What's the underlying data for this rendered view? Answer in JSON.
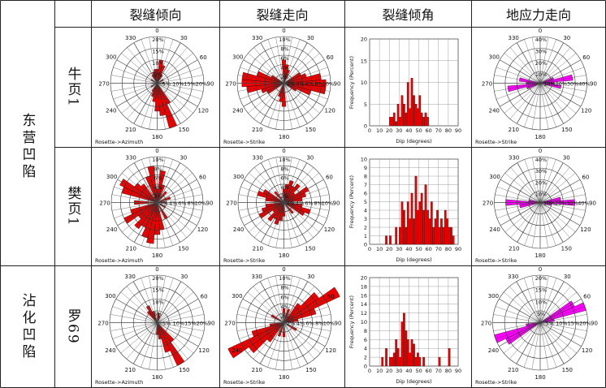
{
  "headers": [
    "裂缝倾向",
    "裂缝走向",
    "裂缝倾角",
    "地应力走向"
  ],
  "regions": [
    {
      "name": "东营凹陷",
      "wells": [
        "牛页1",
        "樊页1"
      ]
    },
    {
      "name": "沾化凹陷",
      "wells": [
        "罗69"
      ]
    }
  ],
  "rose_labels": {
    "azimuth": "Rosette->Azimuth",
    "strike": "Rosette->Strike",
    "angles": [
      "0",
      "30",
      "60",
      "90",
      "120",
      "150",
      "180",
      "210",
      "240",
      "270",
      "300",
      "330"
    ]
  },
  "hist_labels": {
    "ylabel": "Frequency (Percent)",
    "xlabel": "Dip (degrees)"
  },
  "colors": {
    "red": "#ee0000",
    "magenta": "#ff00ff",
    "line": "#222222"
  },
  "chart_data": [
    {
      "type": "rose",
      "row": 0,
      "col": 0,
      "label": "Rosette->Azimuth",
      "rings": [
        "5%",
        "10%",
        "15%",
        "20%"
      ],
      "max": 20,
      "color": "#ee0000",
      "bins": [
        [
          0,
          6
        ],
        [
          10,
          10
        ],
        [
          20,
          8
        ],
        [
          30,
          4
        ],
        [
          60,
          3
        ],
        [
          90,
          3
        ],
        [
          150,
          10
        ],
        [
          160,
          20
        ],
        [
          170,
          14
        ],
        [
          180,
          12
        ],
        [
          190,
          8
        ],
        [
          200,
          6
        ],
        [
          210,
          4
        ],
        [
          240,
          3
        ],
        [
          270,
          2
        ],
        [
          300,
          3
        ],
        [
          330,
          4
        ],
        [
          340,
          5
        ],
        [
          350,
          6
        ]
      ]
    },
    {
      "type": "rose",
      "row": 0,
      "col": 1,
      "label": "Rosette->Strike",
      "rings": [
        "2%",
        "4%",
        "6%",
        "8%",
        "10%"
      ],
      "max": 10,
      "color": "#ee0000",
      "bins": [
        [
          0,
          5
        ],
        [
          10,
          4
        ],
        [
          20,
          3
        ],
        [
          60,
          4
        ],
        [
          70,
          5
        ],
        [
          80,
          8
        ],
        [
          90,
          9
        ],
        [
          100,
          9
        ],
        [
          110,
          6
        ],
        [
          120,
          3
        ],
        [
          180,
          5
        ],
        [
          190,
          4
        ],
        [
          200,
          3
        ],
        [
          240,
          4
        ],
        [
          250,
          5
        ],
        [
          260,
          8
        ],
        [
          270,
          9
        ],
        [
          280,
          9
        ],
        [
          290,
          6
        ],
        [
          300,
          3
        ]
      ]
    },
    {
      "type": "histogram",
      "row": 0,
      "col": 2,
      "x_ticks": [
        0,
        10,
        20,
        30,
        40,
        50,
        60,
        70,
        80,
        90
      ],
      "y_ticks": [
        0,
        5,
        10,
        15,
        20
      ],
      "ymax": 20,
      "color": "#ee0000",
      "bins": [
        [
          20,
          2
        ],
        [
          22,
          2
        ],
        [
          24,
          3
        ],
        [
          26,
          1
        ],
        [
          28,
          5
        ],
        [
          30,
          2
        ],
        [
          32,
          7
        ],
        [
          34,
          5
        ],
        [
          36,
          3
        ],
        [
          38,
          10
        ],
        [
          40,
          4
        ],
        [
          42,
          11
        ],
        [
          44,
          7
        ],
        [
          46,
          5
        ],
        [
          48,
          4
        ],
        [
          50,
          7
        ],
        [
          52,
          3
        ],
        [
          54,
          2
        ],
        [
          56,
          3
        ],
        [
          58,
          2
        ]
      ]
    },
    {
      "type": "rose",
      "row": 0,
      "col": 3,
      "label": "Rosette->Strike",
      "rings": [
        "10%",
        "20%",
        "30%",
        "40%"
      ],
      "max": 40,
      "color": "#ff00ff",
      "bins": [
        [
          70,
          12
        ],
        [
          80,
          28
        ],
        [
          90,
          12
        ],
        [
          100,
          18
        ],
        [
          250,
          12
        ],
        [
          260,
          28
        ],
        [
          270,
          12
        ],
        [
          280,
          18
        ]
      ]
    },
    {
      "type": "rose",
      "row": 1,
      "col": 0,
      "label": "Rosette->Azimuth",
      "rings": [
        "2%",
        "4%",
        "6%",
        "8%",
        "10%"
      ],
      "max": 10,
      "color": "#ee0000",
      "bins": [
        [
          0,
          3
        ],
        [
          10,
          7
        ],
        [
          20,
          4
        ],
        [
          40,
          3
        ],
        [
          70,
          3
        ],
        [
          90,
          2
        ],
        [
          120,
          2
        ],
        [
          150,
          4
        ],
        [
          170,
          6
        ],
        [
          180,
          7
        ],
        [
          190,
          9
        ],
        [
          200,
          8
        ],
        [
          210,
          6
        ],
        [
          220,
          7
        ],
        [
          230,
          5
        ],
        [
          240,
          8
        ],
        [
          250,
          6
        ],
        [
          270,
          5
        ],
        [
          290,
          8
        ],
        [
          300,
          9
        ],
        [
          310,
          6
        ],
        [
          320,
          5
        ],
        [
          340,
          6
        ],
        [
          350,
          8
        ]
      ]
    },
    {
      "type": "rose",
      "row": 1,
      "col": 1,
      "label": "Rosette->Strike",
      "rings": [
        "2%",
        "4%",
        "6%",
        "8%",
        "10%"
      ],
      "max": 10,
      "color": "#ee0000",
      "bins": [
        [
          0,
          3
        ],
        [
          10,
          4
        ],
        [
          20,
          5
        ],
        [
          30,
          4
        ],
        [
          40,
          5
        ],
        [
          50,
          3
        ],
        [
          60,
          6
        ],
        [
          70,
          5
        ],
        [
          80,
          4
        ],
        [
          100,
          4
        ],
        [
          110,
          6
        ],
        [
          120,
          5
        ],
        [
          140,
          3
        ],
        [
          180,
          3
        ],
        [
          190,
          4
        ],
        [
          200,
          5
        ],
        [
          210,
          4
        ],
        [
          220,
          5
        ],
        [
          230,
          3
        ],
        [
          240,
          6
        ],
        [
          250,
          5
        ],
        [
          260,
          4
        ],
        [
          280,
          4
        ],
        [
          290,
          6
        ],
        [
          300,
          5
        ],
        [
          320,
          3
        ]
      ]
    },
    {
      "type": "histogram",
      "row": 1,
      "col": 2,
      "x_ticks": [
        0,
        10,
        20,
        30,
        40,
        50,
        60,
        70,
        80,
        90
      ],
      "y_ticks": [
        0,
        1,
        2,
        3,
        4,
        5,
        6,
        7,
        8,
        9,
        10
      ],
      "ymax": 10,
      "color": "#ee0000",
      "bins": [
        [
          16,
          1
        ],
        [
          20,
          1
        ],
        [
          26,
          2
        ],
        [
          30,
          2
        ],
        [
          32,
          5
        ],
        [
          34,
          4
        ],
        [
          36,
          2
        ],
        [
          38,
          5
        ],
        [
          40,
          3
        ],
        [
          42,
          6
        ],
        [
          44,
          3
        ],
        [
          46,
          8
        ],
        [
          48,
          4
        ],
        [
          50,
          5
        ],
        [
          52,
          6
        ],
        [
          54,
          4
        ],
        [
          56,
          7
        ],
        [
          58,
          4
        ],
        [
          60,
          3
        ],
        [
          62,
          5
        ],
        [
          64,
          2
        ],
        [
          66,
          3
        ],
        [
          68,
          4
        ],
        [
          70,
          2
        ],
        [
          72,
          3
        ],
        [
          74,
          2
        ],
        [
          76,
          4
        ],
        [
          78,
          3
        ],
        [
          80,
          2
        ],
        [
          82,
          2
        ],
        [
          84,
          1
        ]
      ]
    },
    {
      "type": "rose",
      "row": 1,
      "col": 3,
      "label": "Rosette->Strike",
      "rings": [
        "10%",
        "20%",
        "30%",
        "40%"
      ],
      "max": 40,
      "color": "#ff00ff",
      "bins": [
        [
          80,
          18
        ],
        [
          90,
          30
        ],
        [
          100,
          10
        ],
        [
          260,
          18
        ],
        [
          270,
          30
        ],
        [
          280,
          10
        ]
      ]
    },
    {
      "type": "rose",
      "row": 2,
      "col": 0,
      "label": "Rosette->Azimuth",
      "rings": [
        "5%",
        "10%",
        "15%",
        "20%"
      ],
      "max": 20,
      "color": "#ee0000",
      "bins": [
        [
          10,
          4
        ],
        [
          20,
          3
        ],
        [
          90,
          2
        ],
        [
          140,
          10
        ],
        [
          150,
          20
        ],
        [
          160,
          13
        ],
        [
          170,
          7
        ],
        [
          180,
          5
        ],
        [
          320,
          6
        ],
        [
          330,
          8
        ],
        [
          340,
          5
        ]
      ]
    },
    {
      "type": "rose",
      "row": 2,
      "col": 1,
      "label": "Rosette->Strike",
      "rings": [
        "2%",
        "4%",
        "6%",
        "8%",
        "10%"
      ],
      "max": 10,
      "color": "#ee0000",
      "bins": [
        [
          0,
          3
        ],
        [
          20,
          3
        ],
        [
          40,
          5
        ],
        [
          50,
          9
        ],
        [
          60,
          13
        ],
        [
          70,
          7
        ],
        [
          80,
          3
        ],
        [
          120,
          3
        ],
        [
          180,
          3
        ],
        [
          200,
          3
        ],
        [
          220,
          5
        ],
        [
          230,
          9
        ],
        [
          240,
          13
        ],
        [
          250,
          7
        ],
        [
          260,
          3
        ],
        [
          300,
          3
        ]
      ]
    },
    {
      "type": "histogram",
      "row": 2,
      "col": 2,
      "x_ticks": [
        0,
        10,
        20,
        30,
        40,
        50,
        60,
        70,
        80,
        90
      ],
      "y_ticks": [
        0,
        2,
        4,
        6,
        8,
        10,
        12,
        14,
        16,
        18,
        20
      ],
      "ymax": 20,
      "color": "#ee0000",
      "bins": [
        [
          12,
          2
        ],
        [
          16,
          4
        ],
        [
          20,
          2
        ],
        [
          22,
          2
        ],
        [
          24,
          3
        ],
        [
          26,
          6
        ],
        [
          28,
          4
        ],
        [
          30,
          2
        ],
        [
          32,
          10
        ],
        [
          34,
          12
        ],
        [
          36,
          8
        ],
        [
          38,
          6
        ],
        [
          40,
          3
        ],
        [
          42,
          6
        ],
        [
          44,
          5
        ],
        [
          46,
          2
        ],
        [
          48,
          3
        ],
        [
          50,
          2
        ],
        [
          54,
          2
        ],
        [
          70,
          2
        ],
        [
          80,
          4
        ]
      ]
    },
    {
      "type": "rose",
      "row": 2,
      "col": 3,
      "label": "Rosette->Strike",
      "rings": [
        "5%",
        "10%",
        "15%",
        "20%"
      ],
      "max": 20,
      "color": "#ff00ff",
      "bins": [
        [
          60,
          16
        ],
        [
          70,
          20
        ],
        [
          80,
          6
        ],
        [
          240,
          16
        ],
        [
          250,
          20
        ],
        [
          260,
          6
        ]
      ]
    }
  ]
}
